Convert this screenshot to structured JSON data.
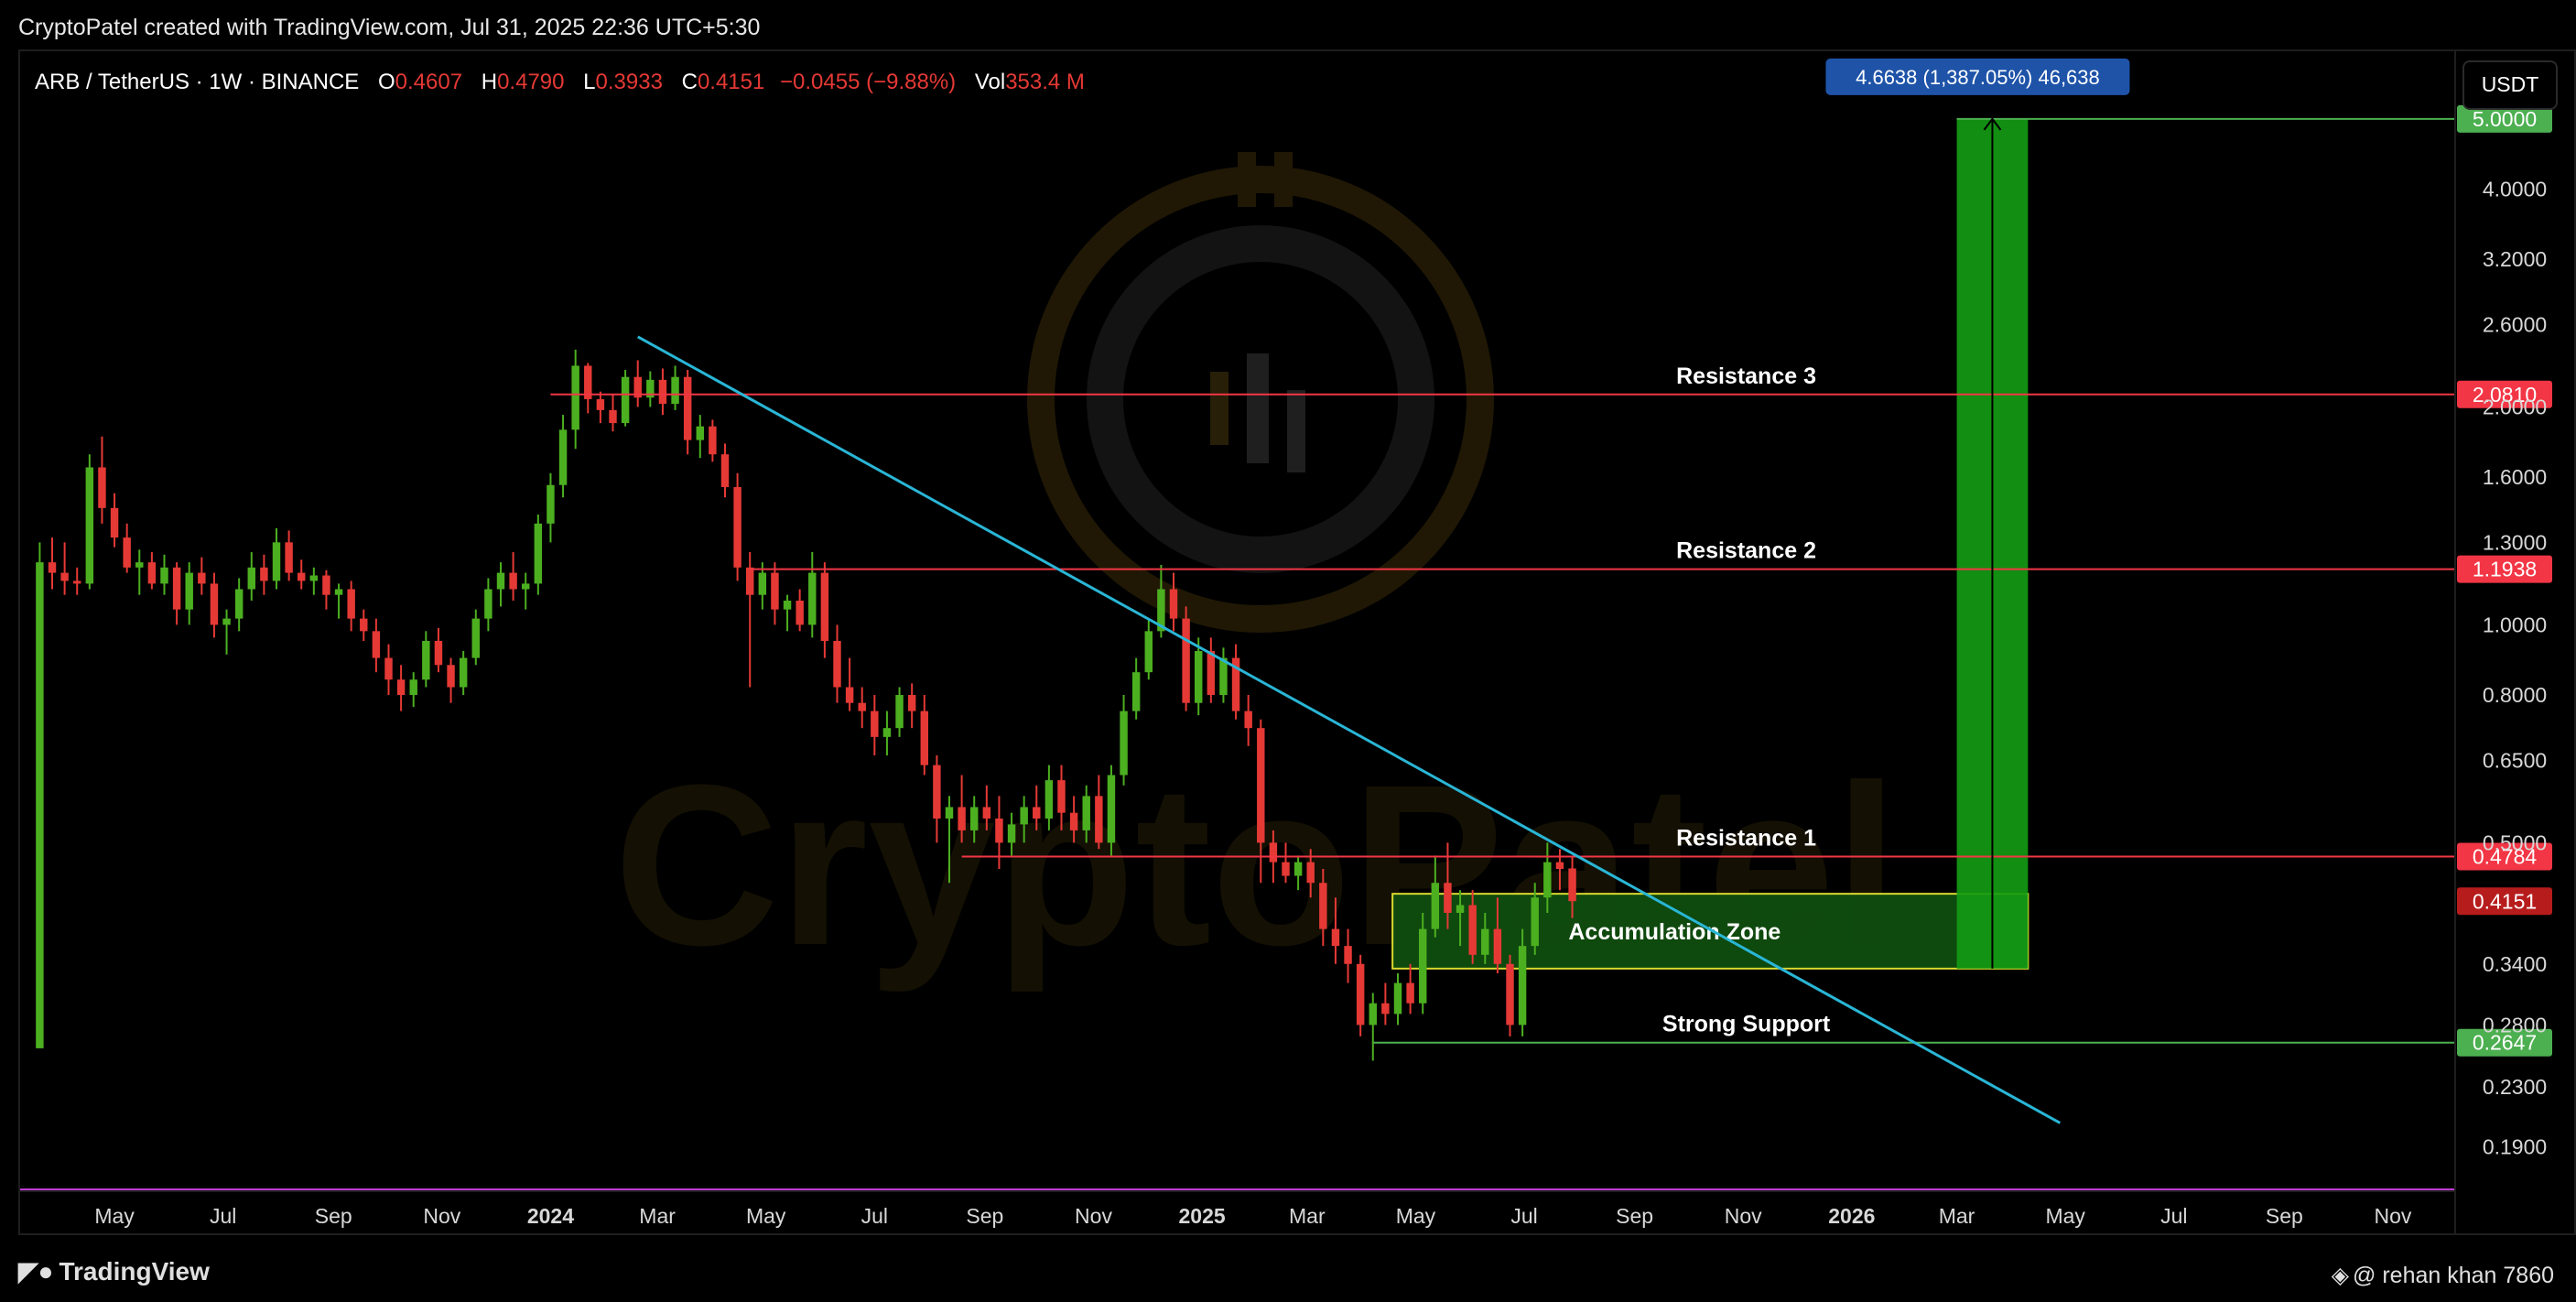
{
  "header": {
    "credit": "CryptoPatel created with TradingView.com, Jul 31, 2025 22:36 UTC+5:30"
  },
  "legend": {
    "symbol": "ARB / TetherUS · 1W · BINANCE",
    "o_label": "O",
    "o_value": "0.4607",
    "h_label": "H",
    "h_value": "0.4790",
    "l_label": "L",
    "l_value": "0.3933",
    "c_label": "C",
    "c_value": "0.4151",
    "change": "−0.0455 (−9.88%)",
    "vol_label": "Vol",
    "vol_value": "353.4 M"
  },
  "currency_button": "USDT",
  "footer": {
    "brand": "TradingView",
    "author": "@ rehan khan 7860"
  },
  "watermark": {
    "text": "CryptoPatel"
  },
  "colors": {
    "up": "#4caf20",
    "down": "#e53935",
    "resistance": "#f23645",
    "support": "#4caf50",
    "trendline": "#29b6d6",
    "zone_fill": "#0f4d0f",
    "zone_border": "#e6e633",
    "target_fill": "#139a13",
    "measure_badge": "#1e53a8",
    "vertical_marker": "#c23bd6"
  },
  "chart_data": {
    "type": "candlestick",
    "title": "ARB / TetherUS · 1W · BINANCE",
    "y_scale": "log",
    "ylim": [
      0.165,
      6.2
    ],
    "y_ticks": [
      {
        "value": 4.0,
        "label": "4.0000"
      },
      {
        "value": 3.2,
        "label": "3.2000"
      },
      {
        "value": 2.6,
        "label": "2.6000"
      },
      {
        "value": 2.0,
        "label": "2.0000"
      },
      {
        "value": 1.6,
        "label": "1.6000"
      },
      {
        "value": 1.3,
        "label": "1.3000"
      },
      {
        "value": 1.0,
        "label": "1.0000"
      },
      {
        "value": 0.8,
        "label": "0.8000"
      },
      {
        "value": 0.65,
        "label": "0.6500"
      },
      {
        "value": 0.5,
        "label": "0.5000"
      },
      {
        "value": 0.34,
        "label": "0.3400"
      },
      {
        "value": 0.28,
        "label": "0.2800"
      },
      {
        "value": 0.23,
        "label": "0.2300"
      },
      {
        "value": 0.19,
        "label": "0.1900"
      }
    ],
    "x_ticks": [
      {
        "date": "2023-05-01",
        "label": "May",
        "bold": false
      },
      {
        "date": "2023-07-01",
        "label": "Jul",
        "bold": false
      },
      {
        "date": "2023-09-01",
        "label": "Sep",
        "bold": false
      },
      {
        "date": "2023-11-01",
        "label": "Nov",
        "bold": false
      },
      {
        "date": "2024-01-01",
        "label": "2024",
        "bold": true
      },
      {
        "date": "2024-03-01",
        "label": "Mar",
        "bold": false
      },
      {
        "date": "2024-05-01",
        "label": "May",
        "bold": false
      },
      {
        "date": "2024-07-01",
        "label": "Jul",
        "bold": false
      },
      {
        "date": "2024-09-01",
        "label": "Sep",
        "bold": false
      },
      {
        "date": "2024-11-01",
        "label": "Nov",
        "bold": false
      },
      {
        "date": "2025-01-01",
        "label": "2025",
        "bold": true
      },
      {
        "date": "2025-03-01",
        "label": "Mar",
        "bold": false
      },
      {
        "date": "2025-05-01",
        "label": "May",
        "bold": false
      },
      {
        "date": "2025-07-01",
        "label": "Jul",
        "bold": false
      },
      {
        "date": "2025-09-01",
        "label": "Sep",
        "bold": false
      },
      {
        "date": "2025-11-01",
        "label": "Nov",
        "bold": false
      },
      {
        "date": "2026-01-01",
        "label": "2026",
        "bold": true
      },
      {
        "date": "2026-03-01",
        "label": "Mar",
        "bold": false
      },
      {
        "date": "2026-05-01",
        "label": "May",
        "bold": false
      },
      {
        "date": "2026-07-01",
        "label": "Jul",
        "bold": false
      },
      {
        "date": "2026-09-01",
        "label": "Sep",
        "bold": false
      },
      {
        "date": "2026-11-01",
        "label": "Nov",
        "bold": false
      }
    ],
    "x_range": [
      "2023-03-09",
      "2026-12-06"
    ],
    "candles": {
      "first_week": "2023-03-20",
      "ohlc": [
        [
          0.26,
          1.3,
          0.26,
          1.22
        ],
        [
          1.22,
          1.32,
          1.12,
          1.18
        ],
        [
          1.18,
          1.3,
          1.1,
          1.15
        ],
        [
          1.15,
          1.2,
          1.1,
          1.14
        ],
        [
          1.14,
          1.72,
          1.12,
          1.65
        ],
        [
          1.65,
          1.82,
          1.38,
          1.45
        ],
        [
          1.45,
          1.52,
          1.28,
          1.32
        ],
        [
          1.32,
          1.38,
          1.18,
          1.2
        ],
        [
          1.2,
          1.27,
          1.1,
          1.22
        ],
        [
          1.22,
          1.26,
          1.12,
          1.14
        ],
        [
          1.14,
          1.25,
          1.1,
          1.2
        ],
        [
          1.2,
          1.22,
          1.0,
          1.05
        ],
        [
          1.05,
          1.22,
          1.0,
          1.18
        ],
        [
          1.18,
          1.24,
          1.1,
          1.14
        ],
        [
          1.14,
          1.18,
          0.96,
          1.0
        ],
        [
          1.0,
          1.05,
          0.91,
          1.02
        ],
        [
          1.02,
          1.16,
          0.98,
          1.12
        ],
        [
          1.12,
          1.26,
          1.08,
          1.2
        ],
        [
          1.2,
          1.25,
          1.1,
          1.15
        ],
        [
          1.15,
          1.36,
          1.12,
          1.3
        ],
        [
          1.3,
          1.35,
          1.15,
          1.18
        ],
        [
          1.18,
          1.23,
          1.12,
          1.15
        ],
        [
          1.15,
          1.2,
          1.1,
          1.17
        ],
        [
          1.17,
          1.19,
          1.05,
          1.1
        ],
        [
          1.1,
          1.14,
          1.02,
          1.12
        ],
        [
          1.12,
          1.15,
          0.98,
          1.02
        ],
        [
          1.02,
          1.05,
          0.95,
          0.98
        ],
        [
          0.98,
          1.02,
          0.86,
          0.9
        ],
        [
          0.9,
          0.94,
          0.8,
          0.84
        ],
        [
          0.84,
          0.88,
          0.76,
          0.8
        ],
        [
          0.8,
          0.86,
          0.77,
          0.84
        ],
        [
          0.84,
          0.98,
          0.82,
          0.95
        ],
        [
          0.95,
          0.99,
          0.86,
          0.88
        ],
        [
          0.88,
          0.9,
          0.78,
          0.82
        ],
        [
          0.82,
          0.92,
          0.8,
          0.9
        ],
        [
          0.9,
          1.05,
          0.88,
          1.02
        ],
        [
          1.02,
          1.16,
          0.98,
          1.12
        ],
        [
          1.12,
          1.22,
          1.06,
          1.18
        ],
        [
          1.18,
          1.26,
          1.08,
          1.12
        ],
        [
          1.12,
          1.18,
          1.05,
          1.14
        ],
        [
          1.14,
          1.42,
          1.1,
          1.38
        ],
        [
          1.38,
          1.62,
          1.3,
          1.56
        ],
        [
          1.56,
          1.95,
          1.5,
          1.86
        ],
        [
          1.86,
          2.4,
          1.75,
          2.28
        ],
        [
          2.28,
          2.3,
          1.96,
          2.05
        ],
        [
          2.05,
          2.1,
          1.9,
          1.98
        ],
        [
          1.98,
          2.08,
          1.85,
          1.9
        ],
        [
          1.9,
          2.25,
          1.88,
          2.2
        ],
        [
          2.2,
          2.32,
          2.0,
          2.06
        ],
        [
          2.06,
          2.24,
          2.0,
          2.18
        ],
        [
          2.18,
          2.26,
          1.95,
          2.02
        ],
        [
          2.02,
          2.28,
          1.98,
          2.2
        ],
        [
          2.2,
          2.25,
          1.72,
          1.8
        ],
        [
          1.8,
          1.95,
          1.7,
          1.88
        ],
        [
          1.88,
          1.92,
          1.68,
          1.72
        ],
        [
          1.72,
          1.78,
          1.5,
          1.55
        ],
        [
          1.55,
          1.62,
          1.15,
          1.2
        ],
        [
          1.2,
          1.26,
          0.82,
          1.1
        ],
        [
          1.1,
          1.22,
          1.05,
          1.18
        ],
        [
          1.18,
          1.22,
          1.0,
          1.05
        ],
        [
          1.05,
          1.1,
          0.98,
          1.08
        ],
        [
          1.08,
          1.12,
          0.98,
          1.0
        ],
        [
          1.0,
          1.26,
          0.96,
          1.18
        ],
        [
          1.18,
          1.22,
          0.9,
          0.95
        ],
        [
          0.95,
          1.0,
          0.78,
          0.82
        ],
        [
          0.82,
          0.9,
          0.76,
          0.78
        ],
        [
          0.78,
          0.82,
          0.72,
          0.76
        ],
        [
          0.76,
          0.8,
          0.66,
          0.7
        ],
        [
          0.7,
          0.76,
          0.66,
          0.72
        ],
        [
          0.72,
          0.82,
          0.7,
          0.8
        ],
        [
          0.8,
          0.83,
          0.72,
          0.76
        ],
        [
          0.76,
          0.8,
          0.62,
          0.64
        ],
        [
          0.64,
          0.66,
          0.5,
          0.54
        ],
        [
          0.54,
          0.58,
          0.44,
          0.56
        ],
        [
          0.56,
          0.62,
          0.5,
          0.52
        ],
        [
          0.52,
          0.58,
          0.5,
          0.56
        ],
        [
          0.56,
          0.6,
          0.52,
          0.54
        ],
        [
          0.54,
          0.58,
          0.46,
          0.5
        ],
        [
          0.5,
          0.55,
          0.48,
          0.53
        ],
        [
          0.53,
          0.58,
          0.5,
          0.56
        ],
        [
          0.56,
          0.6,
          0.52,
          0.54
        ],
        [
          0.54,
          0.64,
          0.52,
          0.61
        ],
        [
          0.61,
          0.64,
          0.52,
          0.55
        ],
        [
          0.55,
          0.58,
          0.5,
          0.52
        ],
        [
          0.52,
          0.6,
          0.5,
          0.58
        ],
        [
          0.58,
          0.62,
          0.49,
          0.5
        ],
        [
          0.5,
          0.64,
          0.48,
          0.62
        ],
        [
          0.62,
          0.8,
          0.6,
          0.76
        ],
        [
          0.76,
          0.9,
          0.74,
          0.86
        ],
        [
          0.86,
          1.02,
          0.84,
          0.98
        ],
        [
          0.98,
          1.21,
          0.96,
          1.12
        ],
        [
          1.12,
          1.18,
          0.98,
          1.02
        ],
        [
          1.02,
          1.06,
          0.76,
          0.78
        ],
        [
          0.78,
          0.96,
          0.75,
          0.92
        ],
        [
          0.92,
          0.96,
          0.78,
          0.8
        ],
        [
          0.8,
          0.93,
          0.78,
          0.9
        ],
        [
          0.9,
          0.94,
          0.74,
          0.76
        ],
        [
          0.76,
          0.8,
          0.68,
          0.72
        ],
        [
          0.72,
          0.74,
          0.44,
          0.5
        ],
        [
          0.5,
          0.52,
          0.44,
          0.47
        ],
        [
          0.47,
          0.5,
          0.44,
          0.45
        ],
        [
          0.45,
          0.48,
          0.43,
          0.47
        ],
        [
          0.47,
          0.49,
          0.42,
          0.44
        ],
        [
          0.44,
          0.46,
          0.36,
          0.38
        ],
        [
          0.38,
          0.42,
          0.34,
          0.36
        ],
        [
          0.36,
          0.38,
          0.32,
          0.34
        ],
        [
          0.34,
          0.35,
          0.27,
          0.28
        ],
        [
          0.28,
          0.31,
          0.25,
          0.3
        ],
        [
          0.3,
          0.32,
          0.28,
          0.29
        ],
        [
          0.29,
          0.33,
          0.28,
          0.32
        ],
        [
          0.32,
          0.34,
          0.29,
          0.3
        ],
        [
          0.3,
          0.4,
          0.29,
          0.38
        ],
        [
          0.38,
          0.48,
          0.37,
          0.44
        ],
        [
          0.44,
          0.5,
          0.38,
          0.4
        ],
        [
          0.4,
          0.43,
          0.36,
          0.41
        ],
        [
          0.41,
          0.43,
          0.34,
          0.35
        ],
        [
          0.35,
          0.4,
          0.34,
          0.38
        ],
        [
          0.38,
          0.42,
          0.33,
          0.34
        ],
        [
          0.34,
          0.35,
          0.27,
          0.28
        ],
        [
          0.28,
          0.38,
          0.27,
          0.36
        ],
        [
          0.36,
          0.44,
          0.35,
          0.42
        ],
        [
          0.42,
          0.5,
          0.4,
          0.47
        ],
        [
          0.47,
          0.49,
          0.43,
          0.46
        ],
        [
          0.4607,
          0.479,
          0.3933,
          0.4151
        ]
      ]
    },
    "horizontal_levels": [
      {
        "name": "Resistance 3",
        "value": 2.081,
        "label": "2.0810",
        "color_key": "resistance",
        "start": "2024-01-01"
      },
      {
        "name": "Resistance 2",
        "value": 1.1938,
        "label": "1.1938",
        "color_key": "resistance",
        "start": "2024-04-22"
      },
      {
        "name": "Resistance 1",
        "value": 0.4784,
        "label": "0.4784",
        "color_key": "resistance",
        "start": "2024-08-19"
      },
      {
        "name": "Strong Support",
        "value": 0.2647,
        "label": "0.2647",
        "color_key": "support",
        "start": "2025-04-07"
      }
    ],
    "price_labels": [
      {
        "value": 5.0,
        "label": "5.0000",
        "color_key": "support"
      },
      {
        "value": 0.4151,
        "label": "0.4151",
        "color_key": "current"
      }
    ],
    "trendline": {
      "start": [
        "2024-02-19",
        2.5
      ],
      "end": [
        "2026-04-28",
        0.205
      ]
    },
    "accumulation_zone": {
      "label": "Accumulation Zone",
      "x_start": "2025-04-18",
      "x_end": "2026-04-10",
      "y_low": 0.335,
      "y_high": 0.425
    },
    "target_projection": {
      "x_start": "2026-03-01",
      "x_end": "2026-04-10",
      "y_low": 0.335,
      "y_high": 5.0,
      "label": "4.6638 (1,387.05%) 46,638"
    },
    "vertical_marker": "2026-12-06"
  }
}
